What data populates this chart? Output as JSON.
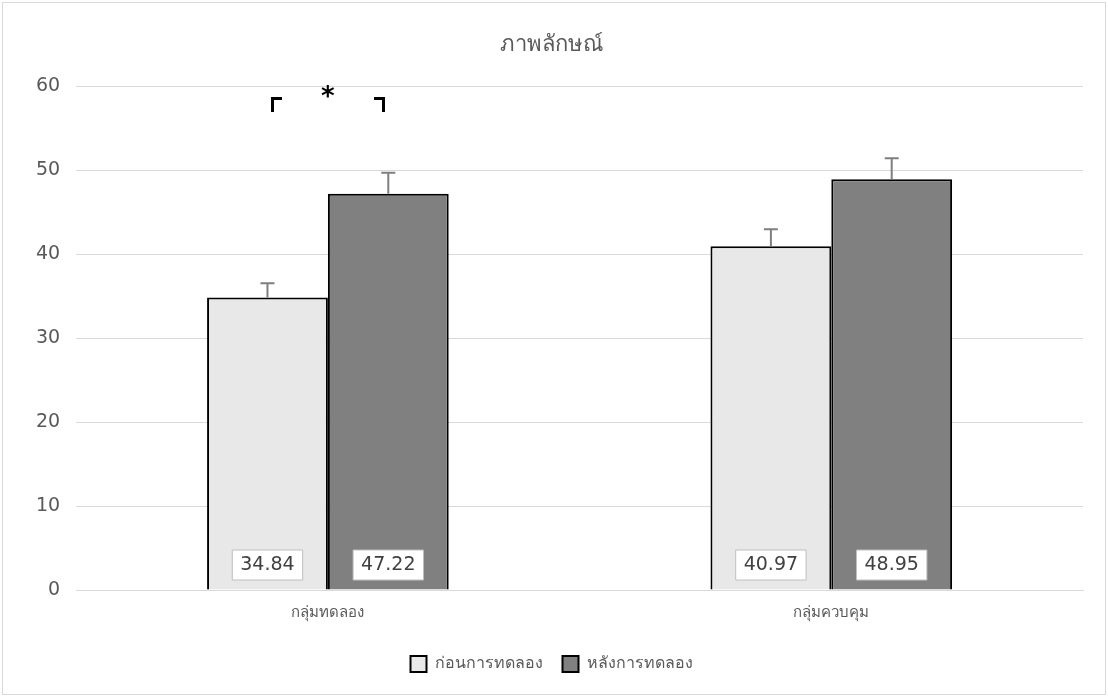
{
  "chart_data": {
    "type": "bar",
    "title": "ภาพลักษณ์",
    "categories": [
      "กลุ่มทดลอง",
      "กลุ่มควบคุม"
    ],
    "series": [
      {
        "name": "ก่อนการทดลอง",
        "color": "#e8e8e8",
        "values": [
          34.84,
          40.97
        ],
        "errors": [
          1.7,
          2.0
        ]
      },
      {
        "name": "หลังการทดลอง",
        "color": "#808080",
        "values": [
          47.22,
          48.95
        ],
        "errors": [
          2.5,
          2.5
        ]
      }
    ],
    "ylim": [
      0,
      60
    ],
    "yticks": [
      0,
      10,
      20,
      30,
      40,
      50,
      60
    ],
    "grid": "y",
    "legend": "bottom",
    "data_labels": true,
    "annotations": [
      "*"
    ]
  }
}
